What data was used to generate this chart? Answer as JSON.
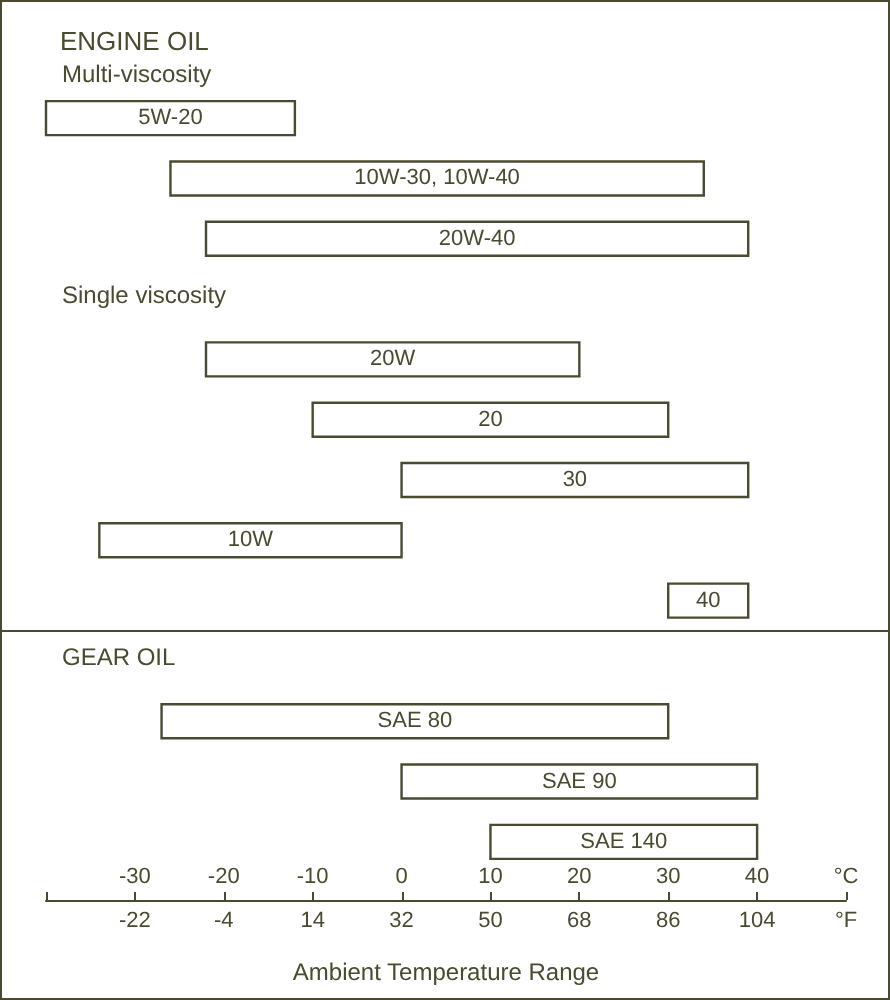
{
  "chart_data": {
    "type": "bar",
    "orientation": "horizontal",
    "title": "ENGINE OIL",
    "xlabel": "Ambient Temperature Range",
    "annotations": [
      "Multi-viscosity",
      "Single viscosity",
      "GEAR OIL"
    ],
    "categories": [
      "5W-20",
      "10W-30, 10W-40",
      "20W-40",
      null,
      "20W",
      "20",
      "30",
      "10W",
      "40",
      null,
      "SAE 80",
      "SAE 90",
      "SAE 140"
    ],
    "base": [
      -40,
      -26,
      -22,
      null,
      -22,
      -10,
      0,
      -34,
      30,
      null,
      -27,
      0,
      10
    ],
    "values": [
      28,
      60,
      61,
      null,
      42,
      40,
      39,
      34,
      9,
      null,
      57,
      40,
      30
    ],
    "color": "#ffffff",
    "xlim": [
      -40,
      50
    ],
    "xticks": [
      {
        "value": -40,
        "label": null
      },
      -30,
      -20,
      -10,
      0,
      10,
      20,
      30,
      40,
      {
        "value": 50,
        "label": "°C"
      }
    ],
    "x2lim": [
      -40,
      122
    ],
    "x2ticks": [
      -22,
      -4,
      14,
      32,
      50,
      68,
      86,
      104,
      {
        "value": 122,
        "label": "°F"
      }
    ],
    "tick_labels": "x"
  }
}
